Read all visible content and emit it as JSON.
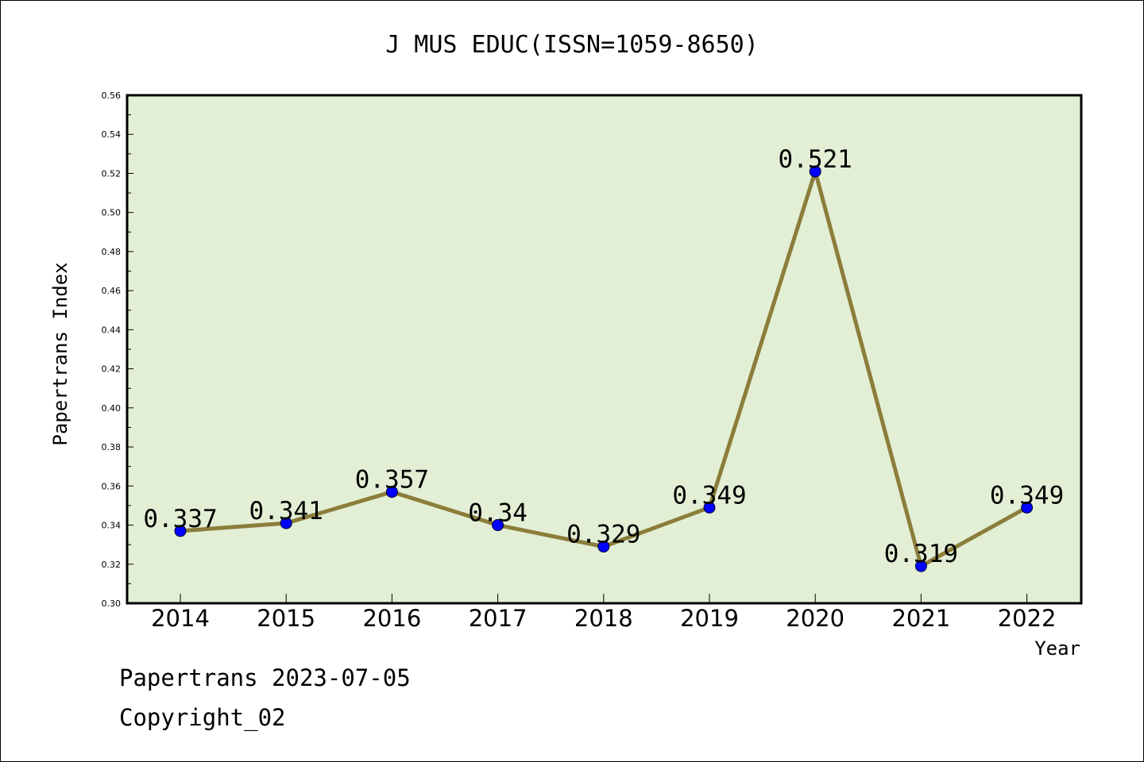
{
  "chart_data": {
    "type": "line",
    "title": "J MUS EDUC(ISSN=1059-8650)",
    "xlabel": "Year",
    "ylabel": "Papertrans Index",
    "categories": [
      "2014",
      "2015",
      "2016",
      "2017",
      "2018",
      "2019",
      "2020",
      "2021",
      "2022"
    ],
    "series": [
      {
        "values": [
          0.337,
          0.341,
          0.357,
          0.34,
          0.329,
          0.349,
          0.521,
          0.319,
          0.349
        ],
        "labels": [
          "0.337",
          "0.341",
          "0.357",
          "0.34",
          "0.329",
          "0.349",
          "0.521",
          "0.319",
          "0.349"
        ]
      }
    ],
    "ylim": [
      0.3,
      0.56
    ],
    "yticks": [
      "0.30",
      "0.32",
      "0.34",
      "0.36",
      "0.38",
      "0.40",
      "0.42",
      "0.44",
      "0.46",
      "0.48",
      "0.50",
      "0.52",
      "0.54",
      "0.56"
    ],
    "grid": false,
    "colors": {
      "plot_background": "#e2efd5",
      "line": "#8b7d3a",
      "marker": "#0000ff"
    }
  },
  "footer": {
    "line1": "Papertrans 2023-07-05",
    "line2": "Copyright_02"
  }
}
